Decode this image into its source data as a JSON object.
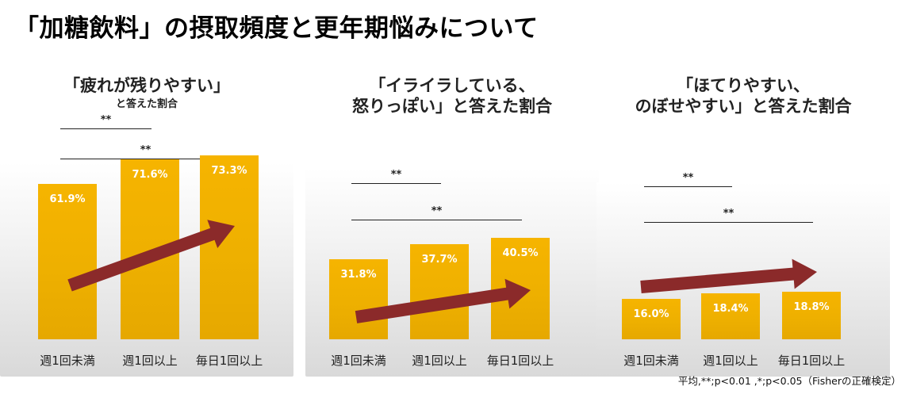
{
  "title": "「加糖飲料」の摂取頻度と更年期悩みについて",
  "footnote": "平均,**;p<0.01 ,*;p<0.05（Fisherの正確検定）",
  "colors": {
    "bar": "#f0b000",
    "arrow": "#8b2a2a"
  },
  "chart_data": [
    {
      "type": "bar",
      "title_lines": [
        "「疲れが残りやすい」",
        "と答えた割合"
      ],
      "categories": [
        "週1回未満",
        "週1回以上",
        "毎日1回以上"
      ],
      "values": [
        61.9,
        71.6,
        73.3
      ],
      "value_labels": [
        "61.9%",
        "71.6%",
        "73.3%"
      ],
      "significance": [
        {
          "label": "**",
          "from": "週1回未満",
          "to": "週1回以上"
        },
        {
          "label": "**",
          "from": "週1回未満",
          "to": "毎日1回以上"
        }
      ],
      "ylim": [
        0,
        100
      ]
    },
    {
      "type": "bar",
      "title_lines": [
        "「イライラしている、",
        "怒りっぽい」と答えた割合"
      ],
      "categories": [
        "週1回未満",
        "週1回以上",
        "毎日1回以上"
      ],
      "values": [
        31.8,
        37.7,
        40.5
      ],
      "value_labels": [
        "31.8%",
        "37.7%",
        "40.5%"
      ],
      "significance": [
        {
          "label": "**",
          "from": "週1回未満",
          "to": "週1回以上"
        },
        {
          "label": "**",
          "from": "週1回未満",
          "to": "毎日1回以上"
        }
      ],
      "ylim": [
        0,
        100
      ]
    },
    {
      "type": "bar",
      "title_lines": [
        "「ほてりやすい、",
        "のぼせやすい」と答えた割合"
      ],
      "categories": [
        "週1回未満",
        "週1回以上",
        "毎日1回以上"
      ],
      "values": [
        16.0,
        18.4,
        18.8
      ],
      "value_labels": [
        "16.0%",
        "18.4%",
        "18.8%"
      ],
      "significance": [
        {
          "label": "**",
          "from": "週1回未満",
          "to": "週1回以上"
        },
        {
          "label": "**",
          "from": "週1回未満",
          "to": "毎日1回以上"
        }
      ],
      "ylim": [
        0,
        100
      ]
    }
  ]
}
